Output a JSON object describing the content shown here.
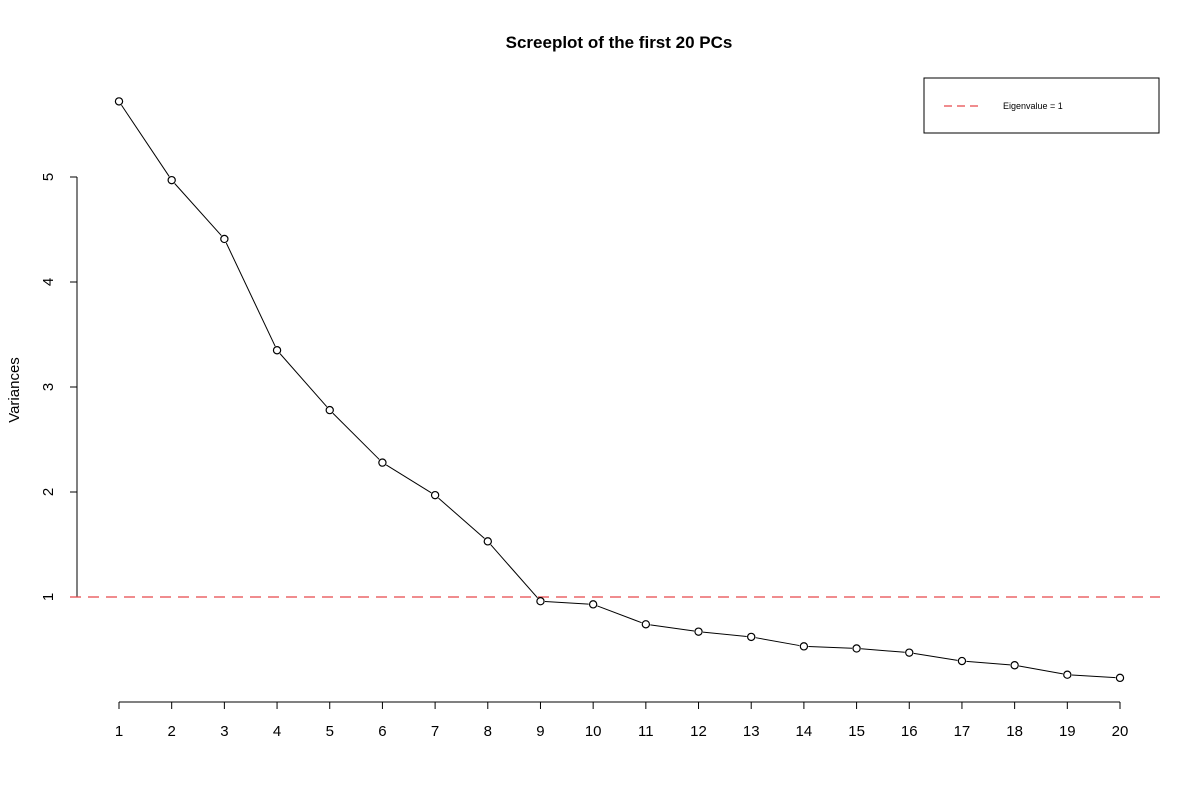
{
  "chart_data": {
    "type": "line",
    "title": "Screeplot of the first 20 PCs",
    "xlabel": "",
    "ylabel": "Variances",
    "x": [
      1,
      2,
      3,
      4,
      5,
      6,
      7,
      8,
      9,
      10,
      11,
      12,
      13,
      14,
      15,
      16,
      17,
      18,
      19,
      20
    ],
    "y": [
      5.72,
      4.97,
      4.41,
      3.35,
      2.78,
      2.28,
      1.97,
      1.53,
      0.96,
      0.93,
      0.74,
      0.67,
      0.62,
      0.53,
      0.51,
      0.47,
      0.39,
      0.35,
      0.26,
      0.23
    ],
    "x_ticks": [
      "1",
      "2",
      "3",
      "4",
      "5",
      "6",
      "7",
      "8",
      "9",
      "10",
      "11",
      "12",
      "13",
      "14",
      "15",
      "16",
      "17",
      "18",
      "19",
      "20"
    ],
    "y_ticks": [
      "1",
      "2",
      "3",
      "4",
      "5"
    ],
    "reference_line": {
      "y": 1,
      "label": "Eigenvalue = 1",
      "color": "#e8474b",
      "style": "dashed"
    },
    "marker": "open-circle",
    "legend_position": "top-right",
    "grid": false
  }
}
